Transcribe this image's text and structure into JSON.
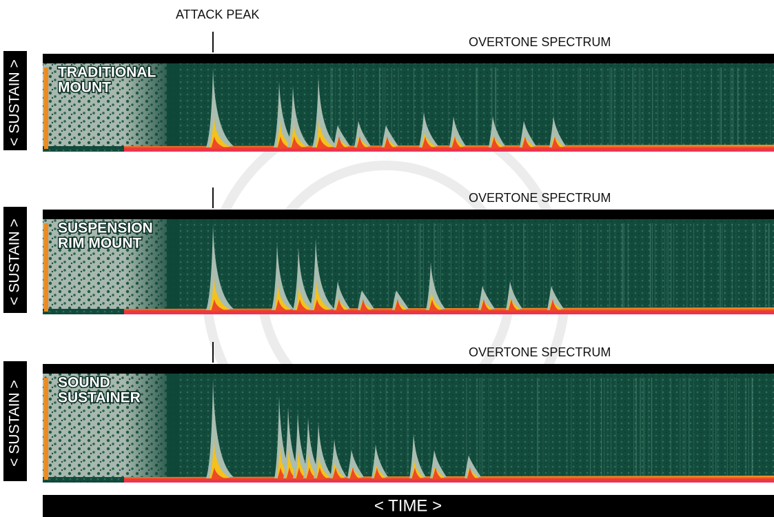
{
  "annotations": {
    "attack_peak": "ATTACK PEAK"
  },
  "panels": [
    {
      "label_lines": [
        "TRADITIONAL",
        "MOUNT"
      ],
      "overtone_label": "OVERTONE SPECTRUM",
      "axis_label": "< SUSTAIN >"
    },
    {
      "label_lines": [
        "SUSPENSION",
        "RIM MOUNT"
      ],
      "overtone_label": "OVERTONE SPECTRUM",
      "axis_label": "< SUSTAIN >"
    },
    {
      "label_lines": [
        "SOUND",
        "SUSTAINER"
      ],
      "overtone_label": "OVERTONE SPECTRUM",
      "axis_label": "< SUSTAIN >"
    }
  ],
  "x_axis_label": "< TIME >"
}
